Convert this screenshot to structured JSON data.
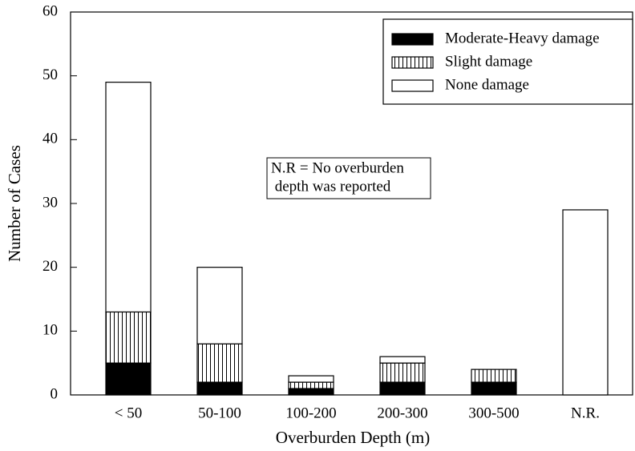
{
  "chart_data": {
    "type": "stacked_bar",
    "xlabel": "Overburden Depth (m)",
    "ylabel": "Number of Cases",
    "categories": [
      "< 50",
      "50-100",
      "100-200",
      "200-300",
      "300-500",
      "N.R."
    ],
    "series": [
      {
        "name": "Moderate-Heavy damage",
        "color": "#000000",
        "values": [
          5,
          2,
          1,
          2,
          2,
          0
        ]
      },
      {
        "name": "Slight damage",
        "color": "#ffffff",
        "hatch": "vertical",
        "values": [
          8,
          6,
          1,
          3,
          2,
          0
        ]
      },
      {
        "name": "None damage",
        "color": "#ffffff",
        "values": [
          36,
          12,
          1,
          1,
          0,
          29
        ]
      }
    ],
    "ylim": [
      0,
      60
    ],
    "yticks": [
      0,
      10,
      20,
      30,
      40,
      50,
      60
    ],
    "legend": "upper right",
    "annotation": [
      "N.R = No overburden",
      " depth was reported"
    ]
  }
}
